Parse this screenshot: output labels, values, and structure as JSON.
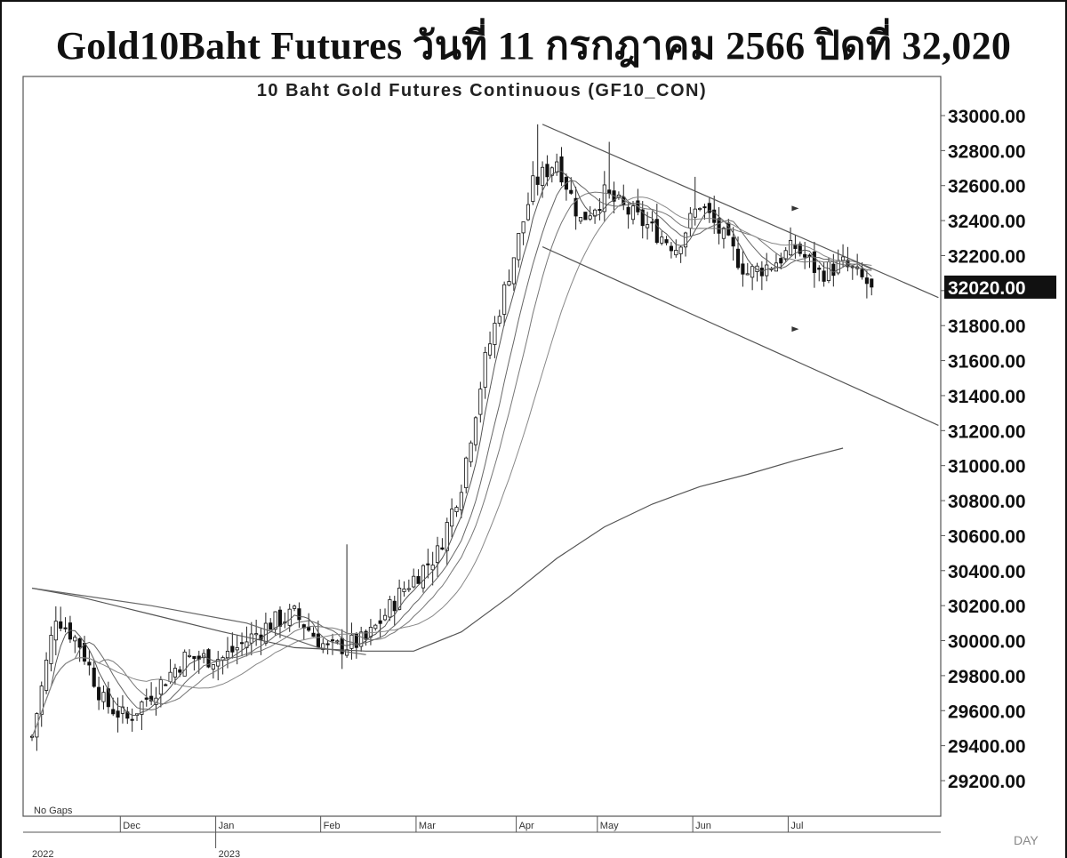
{
  "header": {
    "title": "Gold10Baht Futures วันที่ 11 กรกฎาคม 2566 ปิดที่ 32,020"
  },
  "chart_data": {
    "type": "candlestick",
    "title": "10 Baht Gold Futures Continuous (GF10_CON)",
    "note": "No Gaps",
    "ylim": [
      29000,
      33150
    ],
    "y_ticks": [
      "33000.00",
      "32800.00",
      "32600.00",
      "32400.00",
      "32200.00",
      "32000.00",
      "31800.00",
      "31600.00",
      "31400.00",
      "31200.00",
      "31000.00",
      "30800.00",
      "30600.00",
      "30400.00",
      "30200.00",
      "30000.00",
      "29800.00",
      "29600.00",
      "29400.00",
      "29200.00"
    ],
    "last_price_label": "32020.00",
    "last_price": 32020,
    "month_labels": [
      "Dec",
      "Jan",
      "Feb",
      "Mar",
      "Apr",
      "May",
      "Jun",
      "Jul"
    ],
    "year_labels": [
      "2022",
      "2023"
    ],
    "corner_label": "DAY",
    "n_bars": 190,
    "month_starts": [
      20,
      40,
      62,
      82,
      103,
      120,
      140,
      160
    ],
    "close_anchors": [
      [
        0,
        29450
      ],
      [
        5,
        30150
      ],
      [
        10,
        29980
      ],
      [
        15,
        29650
      ],
      [
        20,
        29550
      ],
      [
        25,
        29700
      ],
      [
        32,
        29900
      ],
      [
        40,
        29900
      ],
      [
        45,
        30000
      ],
      [
        50,
        30100
      ],
      [
        55,
        30150
      ],
      [
        62,
        29950
      ],
      [
        70,
        30000
      ],
      [
        78,
        30300
      ],
      [
        85,
        30500
      ],
      [
        90,
        30900
      ],
      [
        95,
        31600
      ],
      [
        100,
        32100
      ],
      [
        105,
        32600
      ],
      [
        110,
        32750
      ],
      [
        115,
        32400
      ],
      [
        120,
        32550
      ],
      [
        125,
        32450
      ],
      [
        130,
        32350
      ],
      [
        135,
        32250
      ],
      [
        140,
        32500
      ],
      [
        145,
        32300
      ],
      [
        150,
        32100
      ],
      [
        155,
        32150
      ],
      [
        160,
        32250
      ],
      [
        165,
        32100
      ],
      [
        170,
        32150
      ],
      [
        176,
        32020
      ]
    ],
    "range_spike_bars": [
      [
        66,
        30550
      ],
      [
        106,
        32950
      ],
      [
        121,
        32850
      ],
      [
        139,
        32650
      ]
    ],
    "channel_upper": [
      [
        107,
        32950
      ],
      [
        190,
        31960
      ]
    ],
    "channel_lower": [
      [
        107,
        32250
      ],
      [
        190,
        31230
      ]
    ],
    "channel_arrows": [
      [
        160,
        32470
      ],
      [
        160,
        31780
      ]
    ],
    "long_ma": [
      [
        0,
        30300
      ],
      [
        10,
        30250
      ],
      [
        25,
        30150
      ],
      [
        40,
        30050
      ],
      [
        55,
        29960
      ],
      [
        70,
        29940
      ],
      [
        80,
        29940
      ],
      [
        90,
        30050
      ],
      [
        100,
        30250
      ],
      [
        110,
        30470
      ],
      [
        120,
        30650
      ],
      [
        130,
        30780
      ],
      [
        140,
        30880
      ],
      [
        150,
        30950
      ],
      [
        160,
        31030
      ],
      [
        170,
        31100
      ]
    ],
    "declining_line": [
      [
        0,
        30300
      ],
      [
        25,
        30200
      ],
      [
        45,
        30100
      ],
      [
        60,
        29960
      ],
      [
        70,
        29920
      ]
    ]
  }
}
